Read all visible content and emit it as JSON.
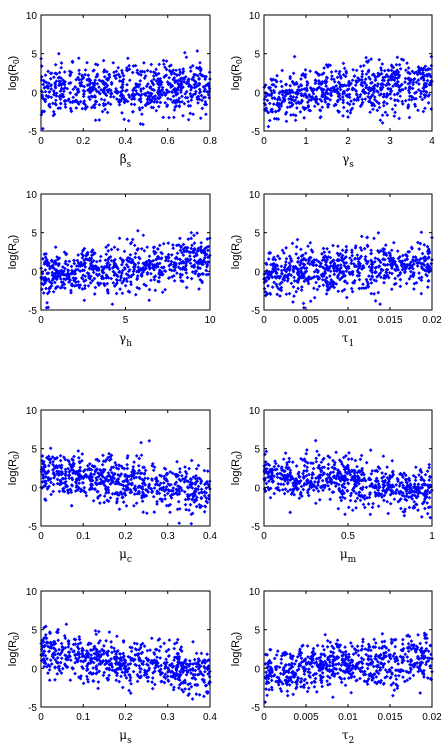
{
  "chart_data": [
    {
      "type": "scatter",
      "xlabel_sym": "β",
      "xlabel_sub": "s",
      "ylabel": "log(R",
      "ylabel_sub": "0",
      "ylabel_end": ")",
      "xlim": [
        0,
        0.8
      ],
      "ylim": [
        -5,
        10
      ],
      "xticks": [
        "0",
        "0.2",
        "0.4",
        "0.6",
        "0.8"
      ],
      "xtick_values": [
        0,
        0.2,
        0.4,
        0.6,
        0.8
      ],
      "yticks": [
        "-5",
        "0",
        "5",
        "10"
      ],
      "ytick_values": [
        -5,
        0,
        5,
        10
      ],
      "trend": {
        "start_mean": 0.0,
        "end_mean": 0.8,
        "spread": 1.6
      }
    },
    {
      "type": "scatter",
      "xlabel_sym": "γ",
      "xlabel_sub": "s",
      "ylabel": "log(R",
      "ylabel_sub": "0",
      "ylabel_end": ")",
      "xlim": [
        0,
        4
      ],
      "ylim": [
        -5,
        10
      ],
      "xticks": [
        "0",
        "1",
        "2",
        "3",
        "4"
      ],
      "xtick_values": [
        0,
        1,
        2,
        3,
        4
      ],
      "yticks": [
        "-5",
        "0",
        "5",
        "10"
      ],
      "ytick_values": [
        -5,
        0,
        5,
        10
      ],
      "trend": {
        "start_mean": -0.8,
        "end_mean": 1.2,
        "spread": 1.6
      }
    },
    {
      "type": "scatter",
      "xlabel_sym": "γ",
      "xlabel_sub": "h",
      "ylabel": "log(R",
      "ylabel_sub": "0",
      "ylabel_end": ")",
      "xlim": [
        0,
        10
      ],
      "ylim": [
        -5,
        10
      ],
      "xticks": [
        "0",
        "5",
        "10"
      ],
      "xtick_values": [
        0,
        5,
        10
      ],
      "yticks": [
        "-5",
        "0",
        "5",
        "10"
      ],
      "ytick_values": [
        -5,
        0,
        5,
        10
      ],
      "trend": {
        "start_mean": -0.5,
        "end_mean": 1.3,
        "spread": 1.5
      }
    },
    {
      "type": "scatter",
      "xlabel_sym": "τ",
      "xlabel_sub": "1",
      "ylabel": "log(R",
      "ylabel_sub": "0",
      "ylabel_end": ")",
      "xlim": [
        0,
        0.02
      ],
      "ylim": [
        -5,
        10
      ],
      "xticks": [
        "0",
        "0.005",
        "0.01",
        "0.015",
        "0.02"
      ],
      "xtick_values": [
        0,
        0.005,
        0.01,
        0.015,
        0.02
      ],
      "yticks": [
        "-5",
        "0",
        "5",
        "10"
      ],
      "ytick_values": [
        -5,
        0,
        5,
        10
      ],
      "trend": {
        "start_mean": -0.3,
        "end_mean": 1.2,
        "spread": 1.5
      }
    },
    {
      "type": "scatter",
      "xlabel_sym": "μ",
      "xlabel_sub": "c",
      "ylabel": "log(R",
      "ylabel_sub": "0",
      "ylabel_end": ")",
      "xlim": [
        0,
        0.4
      ],
      "ylim": [
        -5,
        10
      ],
      "xticks": [
        "0",
        "0.1",
        "0.2",
        "0.3",
        "0.4"
      ],
      "xtick_values": [
        0,
        0.1,
        0.2,
        0.3,
        0.4
      ],
      "yticks": [
        "-5",
        "0",
        "5",
        "10"
      ],
      "ytick_values": [
        -5,
        0,
        5,
        10
      ],
      "trend": {
        "start_mean": 1.8,
        "end_mean": -0.5,
        "spread": 1.5
      }
    },
    {
      "type": "scatter",
      "xlabel_sym": "μ",
      "xlabel_sub": "m",
      "ylabel": "log(R",
      "ylabel_sub": "0",
      "ylabel_end": ")",
      "xlim": [
        0,
        1
      ],
      "ylim": [
        -5,
        10
      ],
      "xticks": [
        "0",
        "0.5",
        "1"
      ],
      "xtick_values": [
        0,
        0.5,
        1
      ],
      "yticks": [
        "-5",
        "0",
        "5",
        "10"
      ],
      "ytick_values": [
        -5,
        0,
        5,
        10
      ],
      "trend": {
        "start_mean": 1.8,
        "end_mean": -0.5,
        "spread": 1.5
      }
    },
    {
      "type": "scatter",
      "xlabel_sym": "μ",
      "xlabel_sub": "s",
      "ylabel": "log(R",
      "ylabel_sub": "0",
      "ylabel_end": ")",
      "xlim": [
        0,
        0.4
      ],
      "ylim": [
        -5,
        10
      ],
      "xticks": [
        "0",
        "0.1",
        "0.2",
        "0.3",
        "0.4"
      ],
      "xtick_values": [
        0,
        0.1,
        0.2,
        0.3,
        0.4
      ],
      "yticks": [
        "-5",
        "0",
        "5",
        "10"
      ],
      "ytick_values": [
        -5,
        0,
        5,
        10
      ],
      "trend": {
        "start_mean": 2.2,
        "end_mean": -0.7,
        "spread": 1.4
      }
    },
    {
      "type": "scatter",
      "xlabel_sym": "τ",
      "xlabel_sub": "2",
      "ylabel": "log(R",
      "ylabel_sub": "0",
      "ylabel_end": ")",
      "xlim": [
        0,
        0.02
      ],
      "ylim": [
        -5,
        10
      ],
      "xticks": [
        "0",
        "0.005",
        "0.01",
        "0.015",
        "0.02"
      ],
      "xtick_values": [
        0,
        0.005,
        0.01,
        0.015,
        0.02
      ],
      "yticks": [
        "-5",
        "0",
        "5",
        "10"
      ],
      "ytick_values": [
        -5,
        0,
        5,
        10
      ],
      "trend": {
        "start_mean": -0.5,
        "end_mean": 1.3,
        "spread": 1.5
      }
    }
  ],
  "colors": {
    "marker": "#0000ff",
    "axes": "#000000"
  }
}
